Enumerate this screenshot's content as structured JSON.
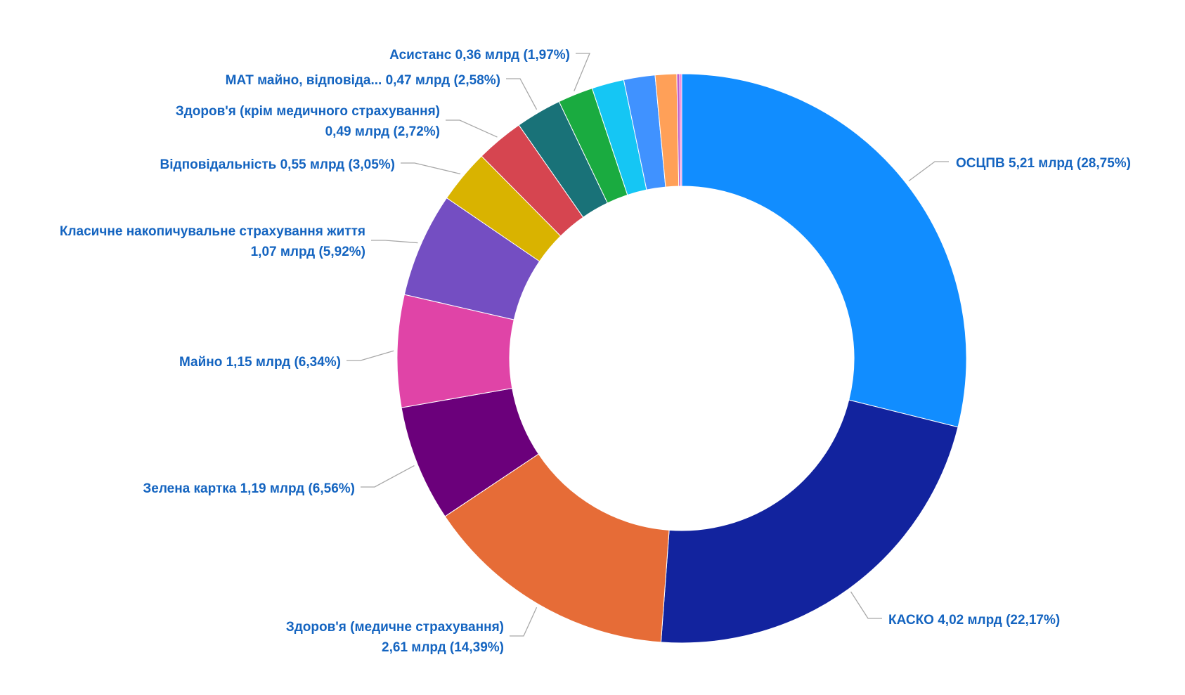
{
  "chart_data": {
    "type": "pie",
    "donut": true,
    "colors": {
      "label_text": "#1464c0",
      "leader_line": "#a8a8a8"
    },
    "slices": [
      {
        "label": "ОСЦПВ",
        "value": 5.21,
        "value_text": "5,21 млрд",
        "percent": 28.75,
        "percent_text": "(28,75%)",
        "color": "#118dff"
      },
      {
        "label": "КАСКО",
        "value": 4.02,
        "value_text": "4,02 млрд",
        "percent": 22.17,
        "percent_text": "(22,17%)",
        "color": "#12239e"
      },
      {
        "label": "Здоров'я (медичне страхування)",
        "value": 2.61,
        "value_text": "2,61 млрд",
        "percent": 14.39,
        "percent_text": "(14,39%)",
        "color": "#e66c37"
      },
      {
        "label": "Зелена картка",
        "value": 1.19,
        "value_text": "1,19 млрд",
        "percent": 6.56,
        "percent_text": "(6,56%)",
        "color": "#6b007b"
      },
      {
        "label": "Майно",
        "value": 1.15,
        "value_text": "1,15 млрд",
        "percent": 6.34,
        "percent_text": "(6,34%)",
        "color": "#e044a7"
      },
      {
        "label": "Класичне накопичувальне страхування життя",
        "value": 1.07,
        "value_text": "1,07 млрд",
        "percent": 5.92,
        "percent_text": "(5,92%)",
        "color": "#744ec2"
      },
      {
        "label": "Відповідальність",
        "value": 0.55,
        "value_text": "0,55 млрд",
        "percent": 3.05,
        "percent_text": "(3,05%)",
        "color": "#d9b300"
      },
      {
        "label": "Здоров'я (крім медичного страхування)",
        "value": 0.49,
        "value_text": "0,49 млрд",
        "percent": 2.72,
        "percent_text": "(2,72%)",
        "color": "#d64550"
      },
      {
        "label": "МАТ майно, відповіда...",
        "value": 0.47,
        "value_text": "0,47 млрд",
        "percent": 2.58,
        "percent_text": "(2,58%)",
        "color": "#197278"
      },
      {
        "label": "Асистанс",
        "value": 0.36,
        "value_text": "0,36 млрд",
        "percent": 1.97,
        "percent_text": "(1,97%)",
        "color": "#1aab40"
      },
      {
        "label": "",
        "value": 0.33,
        "percent": 1.8,
        "color": "#15c6f4"
      },
      {
        "label": "",
        "value": 0.32,
        "percent": 1.78,
        "color": "#4092ff"
      },
      {
        "label": "",
        "value": 0.22,
        "percent": 1.2,
        "color": "#ffa058"
      },
      {
        "label": "",
        "value": 0.03,
        "percent": 0.15,
        "color": "#be5dc9"
      },
      {
        "label": "",
        "value": 0.02,
        "percent": 0.1,
        "color": "#f472d0"
      }
    ],
    "labels": [
      {
        "slice": 0,
        "lines": [
          "ОСЦПВ 5,21 млрд (28,75%)"
        ]
      },
      {
        "slice": 1,
        "lines": [
          "КАСКО 4,02 млрд (22,17%)"
        ]
      },
      {
        "slice": 2,
        "lines": [
          "Здоров'я (медичне страхування)",
          "2,61 млрд (14,39%)"
        ]
      },
      {
        "slice": 3,
        "lines": [
          "Зелена картка 1,19 млрд (6,56%)"
        ]
      },
      {
        "slice": 4,
        "lines": [
          "Майно 1,15 млрд (6,34%)"
        ]
      },
      {
        "slice": 5,
        "lines": [
          "Класичне накопичувальне страхування життя",
          "1,07 млрд (5,92%)"
        ]
      },
      {
        "slice": 6,
        "lines": [
          "Відповідальність 0,55 млрд (3,05%)"
        ]
      },
      {
        "slice": 7,
        "lines": [
          "Здоров'я (крім медичного страхування)",
          "0,49 млрд (2,72%)"
        ]
      },
      {
        "slice": 8,
        "lines": [
          "МАТ майно, відповіда... 0,47 млрд (2,58%)"
        ]
      },
      {
        "slice": 9,
        "lines": [
          "Асистанс 0,36 млрд (1,97%)"
        ]
      }
    ]
  }
}
